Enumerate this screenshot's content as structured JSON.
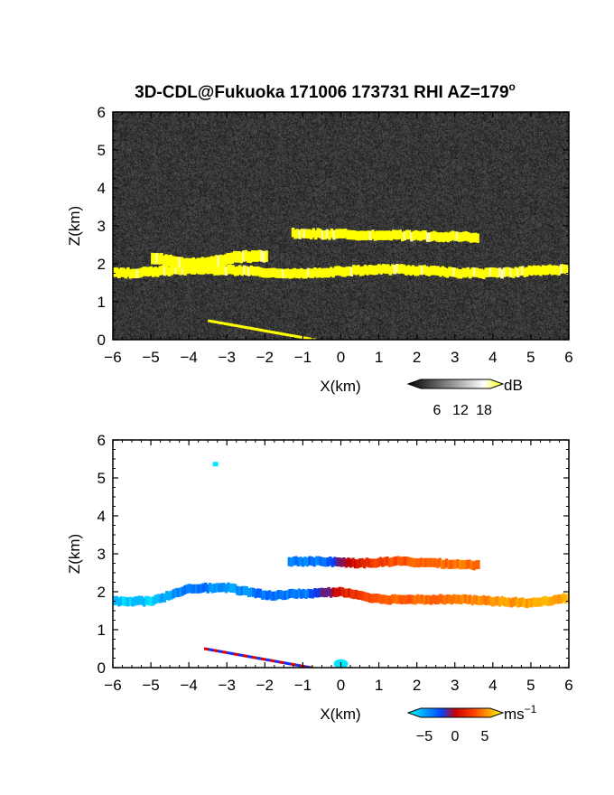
{
  "chart_data": [
    {
      "type": "heatmap",
      "title": "3D-CDL@Fukuoka 171006 173731 RHI AZ=179",
      "title_superscript": "o",
      "xlabel": "X(km)",
      "ylabel": "Z(km)",
      "xlim": [
        -6,
        6
      ],
      "ylim": [
        0,
        6
      ],
      "x_ticks": [
        "−6",
        "−5",
        "−4",
        "−3",
        "−2",
        "−1",
        "0",
        "1",
        "2",
        "3",
        "4",
        "5",
        "6"
      ],
      "y_ticks": [
        "0",
        "1",
        "2",
        "3",
        "4",
        "5",
        "6"
      ],
      "background": "noise-gray",
      "colorbar": {
        "unit": "dB",
        "ticks": [
          "6",
          "12",
          "18"
        ],
        "tick_values": [
          6,
          12,
          18
        ],
        "range": [
          0,
          20
        ],
        "colors": [
          "#000000",
          "#ffffff",
          "#ffff00"
        ]
      },
      "features": [
        {
          "name": "upper layer",
          "x_start": -1.3,
          "x_end": 3.6,
          "z": 2.8,
          "thickness": 0.25,
          "value": 20
        },
        {
          "name": "lower layer",
          "x_start": -6.0,
          "x_end": 6.0,
          "z": 1.8,
          "thickness": 0.25,
          "value": 20
        },
        {
          "name": "hump",
          "x_start": -5.0,
          "x_end": -2.0,
          "z": 2.1,
          "thickness": 0.3,
          "value": 20
        },
        {
          "name": "ground return",
          "x_start": -3.5,
          "x_end": -0.7,
          "z_start": 0.5,
          "z_end": 0.0,
          "value": 20
        }
      ]
    },
    {
      "type": "heatmap",
      "xlabel": "X(km)",
      "ylabel": "Z(km)",
      "xlim": [
        -6,
        6
      ],
      "ylim": [
        0,
        6
      ],
      "x_ticks": [
        "−6",
        "−5",
        "−4",
        "−3",
        "−2",
        "−1",
        "0",
        "1",
        "2",
        "3",
        "4",
        "5",
        "6"
      ],
      "y_ticks": [
        "0",
        "1",
        "2",
        "3",
        "4",
        "5",
        "6"
      ],
      "background": "#ffffff",
      "colorbar": {
        "unit": "ms",
        "unit_superscript": "−1",
        "ticks": [
          "−5",
          "0",
          "5"
        ],
        "tick_values": [
          -5,
          0,
          5
        ],
        "range": [
          -7,
          7
        ],
        "colors": [
          "#00ffff",
          "#0000ff",
          "#ff0000",
          "#ffff00"
        ]
      },
      "features": [
        {
          "name": "upper layer",
          "x": [
            -1.4,
            -0.5,
            0.5,
            1.5,
            2.5,
            3.6
          ],
          "z": [
            2.8,
            2.8,
            2.75,
            2.8,
            2.75,
            2.7
          ],
          "values": [
            -4.5,
            -4,
            1.5,
            3,
            3.5,
            4
          ]
        },
        {
          "name": "lower layer",
          "x": [
            -6.0,
            -5.0,
            -4.0,
            -3.0,
            -2.0,
            -1.0,
            0.0,
            1.0,
            2.0,
            3.0,
            4.0,
            5.0,
            6.0
          ],
          "z": [
            1.75,
            1.75,
            2.1,
            2.1,
            1.9,
            1.95,
            2.0,
            1.8,
            1.8,
            1.8,
            1.75,
            1.7,
            1.85
          ],
          "values": [
            -6,
            -6,
            -4,
            -5,
            -4,
            -4.5,
            1,
            3,
            3.5,
            4,
            4.5,
            5,
            5
          ]
        },
        {
          "name": "ground return",
          "x_start": -3.6,
          "x_end": -0.8,
          "z_start": 0.5,
          "z_end": 0.0,
          "values": [
            -4,
            4
          ]
        },
        {
          "name": "isolated point",
          "x": -3.3,
          "z": 5.35,
          "value": -6.5
        },
        {
          "name": "ground blob",
          "x": 0.0,
          "z": 0.1,
          "value": -6.5
        }
      ]
    }
  ]
}
